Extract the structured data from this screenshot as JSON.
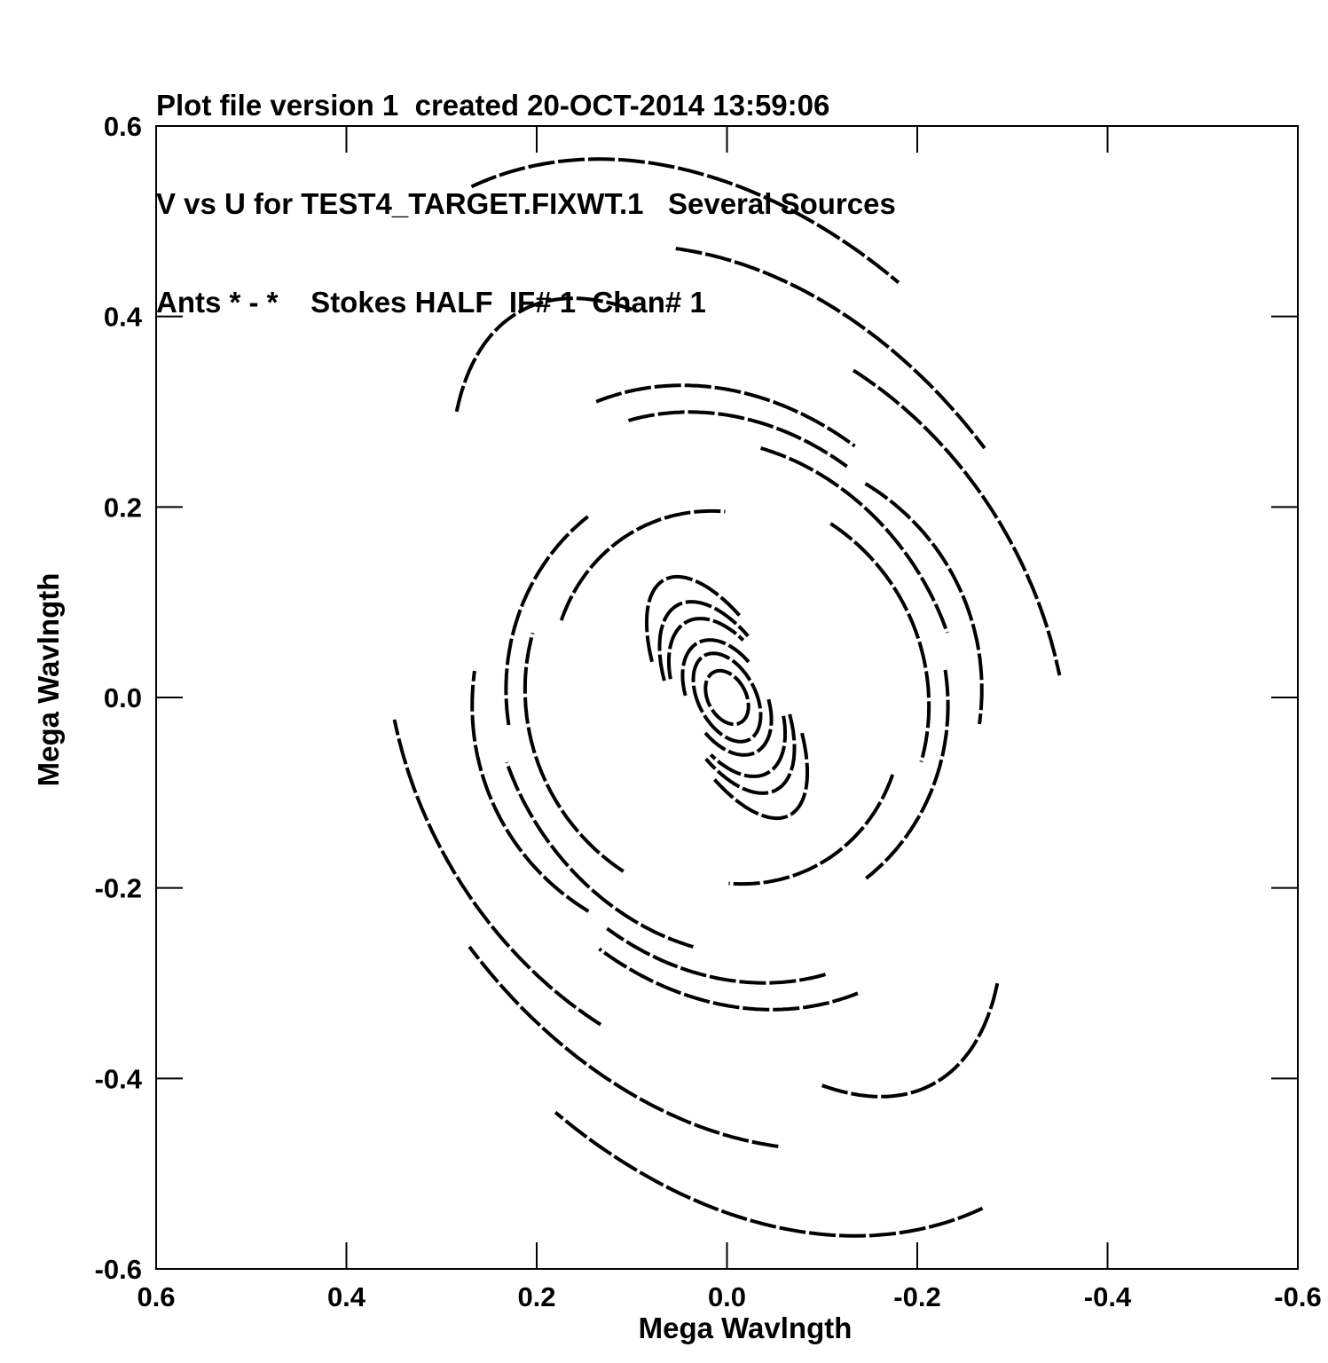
{
  "header": {
    "line1": "Plot file version 1  created 20-OCT-2014 13:59:06",
    "line2": "V vs U for TEST4_TARGET.FIXWT.1   Several Sources",
    "line3": "Ants * - *    Stokes HALF  IF# 1  Chan# 1"
  },
  "chart_data": {
    "type": "scatter",
    "title": "V vs U for TEST4_TARGET.FIXWT.1   Several Sources",
    "xlabel": "Mega Wavlngth",
    "ylabel": "Mega Wavlngth",
    "xlim": [
      0.6,
      -0.6
    ],
    "ylim": [
      -0.6,
      0.6
    ],
    "x_ticks": [
      "0.6",
      "0.4",
      "0.2",
      "0.0",
      "-0.2",
      "-0.4",
      "-0.6"
    ],
    "y_ticks": [
      "0.6",
      "0.4",
      "0.2",
      "0.0",
      "-0.2",
      "-0.4",
      "-0.6"
    ],
    "grid": false,
    "marker_color": "#000000",
    "series": [
      {
        "arcs": [
          {
            "a": 0.42,
            "b": 0.6,
            "from": 92,
            "to": 150
          },
          {
            "a": 0.42,
            "b": 0.6,
            "from": 272,
            "to": 330
          },
          {
            "a": 0.37,
            "b": 0.5,
            "from": 118,
            "to": 168
          },
          {
            "a": 0.37,
            "b": 0.5,
            "from": 298,
            "to": 348
          },
          {
            "a": 0.22,
            "b": 0.46,
            "from": 60,
            "to": 118
          },
          {
            "a": 0.22,
            "b": 0.46,
            "from": 240,
            "to": 298
          },
          {
            "a": 0.34,
            "b": 0.42,
            "from": 145,
            "to": 200
          },
          {
            "a": 0.34,
            "b": 0.42,
            "from": 325,
            "to": 380
          },
          {
            "a": 0.28,
            "b": 0.34,
            "from": 95,
            "to": 150
          },
          {
            "a": 0.28,
            "b": 0.34,
            "from": 275,
            "to": 330
          },
          {
            "a": 0.26,
            "b": 0.31,
            "from": 100,
            "to": 150
          },
          {
            "a": 0.26,
            "b": 0.31,
            "from": 280,
            "to": 330
          },
          {
            "a": 0.27,
            "b": 0.26,
            "from": 150,
            "to": 215
          },
          {
            "a": 0.27,
            "b": 0.26,
            "from": 330,
            "to": 395
          },
          {
            "a": 0.24,
            "b": 0.28,
            "from": 130,
            "to": 190
          },
          {
            "a": 0.24,
            "b": 0.28,
            "from": 310,
            "to": 370
          },
          {
            "a": 0.21,
            "b": 0.22,
            "from": 150,
            "to": 225
          },
          {
            "a": 0.21,
            "b": 0.22,
            "from": 330,
            "to": 405
          },
          {
            "a": 0.18,
            "b": 0.2,
            "from": 50,
            "to": 120
          },
          {
            "a": 0.18,
            "b": 0.2,
            "from": 230,
            "to": 300
          },
          {
            "a": 0.23,
            "b": 0.24,
            "from": 20,
            "to": 80
          },
          {
            "a": 0.23,
            "b": 0.24,
            "from": 200,
            "to": 260
          },
          {
            "a": 0.06,
            "b": 0.14,
            "from": 30,
            "to": 150
          },
          {
            "a": 0.06,
            "b": 0.14,
            "from": 210,
            "to": 330
          },
          {
            "a": 0.055,
            "b": 0.11,
            "from": 25,
            "to": 155
          },
          {
            "a": 0.055,
            "b": 0.11,
            "from": 205,
            "to": 335
          },
          {
            "a": 0.05,
            "b": 0.09,
            "from": 30,
            "to": 150
          },
          {
            "a": 0.05,
            "b": 0.09,
            "from": 210,
            "to": 330
          },
          {
            "a": 0.03,
            "b": 0.05,
            "from": 0,
            "to": 360
          },
          {
            "a": 0.04,
            "b": 0.065,
            "from": 20,
            "to": 160
          },
          {
            "a": 0.04,
            "b": 0.065,
            "from": 200,
            "to": 340
          },
          {
            "a": 0.02,
            "b": 0.03,
            "from": 0,
            "to": 360
          }
        ]
      }
    ]
  }
}
